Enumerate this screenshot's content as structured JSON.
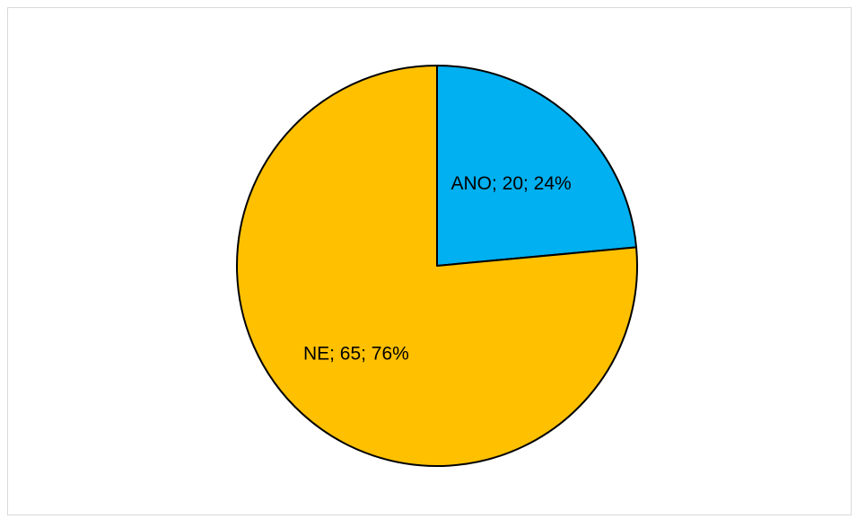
{
  "chart_data": {
    "type": "pie",
    "title": "",
    "slices": [
      {
        "category": "ANO",
        "value": 20,
        "percent": 24,
        "color": "#00B0F0",
        "label": "ANO; 20; 24%"
      },
      {
        "category": "NE",
        "value": 65,
        "percent": 76,
        "color": "#FFC000",
        "label": "NE; 65; 76%"
      }
    ],
    "legend": "none",
    "start_angle": "12 o'clock, clockwise"
  }
}
